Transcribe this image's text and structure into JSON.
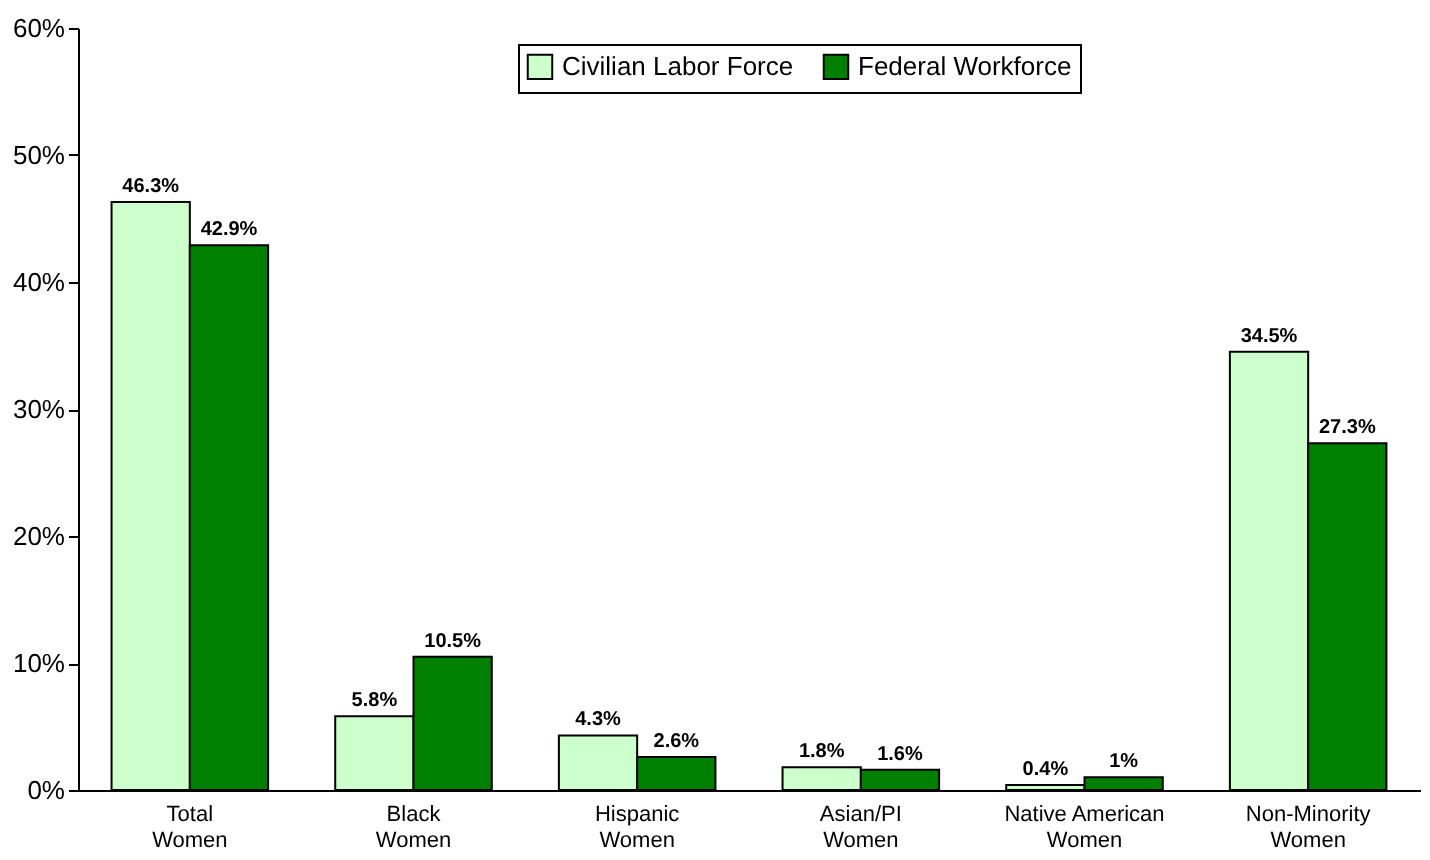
{
  "chart_data": {
    "type": "bar",
    "categories": [
      "Total Women",
      "Black Women",
      "Hispanic Women",
      "Asian/PI Women",
      "Native American Women",
      "Non-Minority Women"
    ],
    "series": [
      {
        "name": "Civilian Labor Force",
        "color": "#ccffcc",
        "values": [
          46.3,
          5.8,
          4.3,
          1.8,
          0.4,
          34.5
        ],
        "value_labels": [
          "46.3%",
          "5.8%",
          "4.3%",
          "1.8%",
          "0.4%",
          "34.5%"
        ]
      },
      {
        "name": "Federal Workforce",
        "color": "#008000",
        "values": [
          42.9,
          10.5,
          2.6,
          1.6,
          1.0,
          27.3
        ],
        "value_labels": [
          "42.9%",
          "10.5%",
          "2.6%",
          "1.6%",
          "1%",
          "27.3%"
        ]
      }
    ],
    "ylim": [
      0,
      60
    ],
    "yticks": [
      {
        "value": 0,
        "label": "0%"
      },
      {
        "value": 10,
        "label": "10%"
      },
      {
        "value": 20,
        "label": "20%"
      },
      {
        "value": 30,
        "label": "30%"
      },
      {
        "value": 40,
        "label": "40%"
      },
      {
        "value": 50,
        "label": "50%"
      },
      {
        "value": 60,
        "label": "60%"
      }
    ],
    "grid": false,
    "legend": "top"
  }
}
